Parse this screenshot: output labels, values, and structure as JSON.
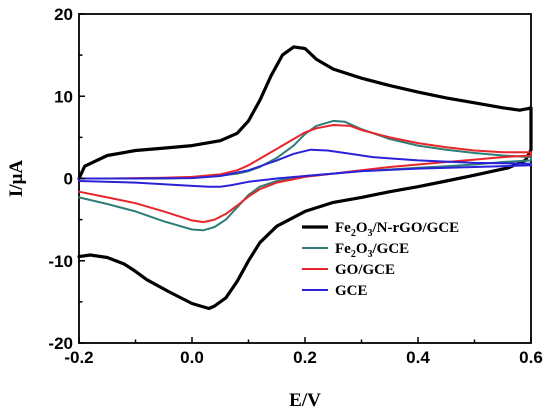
{
  "chart_data": {
    "type": "line",
    "title": "",
    "xlabel": "E/V",
    "ylabel": "I/μA",
    "xlim": [
      -0.2,
      0.6
    ],
    "ylim": [
      -20,
      20
    ],
    "x_ticks": [
      "-0.2",
      "0.0",
      "0.2",
      "0.4",
      "0.6"
    ],
    "y_ticks": [
      "20",
      "10",
      "0",
      "-10",
      "-20"
    ],
    "grid": false,
    "legend_position": "lower-right",
    "series": [
      {
        "name": "Fe2O3/N-rGO/GCE",
        "name_parts": [
          "Fe",
          "2",
          "O",
          "3",
          "/N-rGO/GCE"
        ],
        "color": "#000000",
        "stroke_width": 3.2,
        "x": [
          -0.2,
          -0.19,
          -0.15,
          -0.1,
          -0.05,
          0.0,
          0.05,
          0.08,
          0.1,
          0.12,
          0.14,
          0.16,
          0.18,
          0.2,
          0.22,
          0.25,
          0.3,
          0.35,
          0.4,
          0.45,
          0.5,
          0.55,
          0.58,
          0.595,
          0.6,
          0.6,
          0.59,
          0.56,
          0.52,
          0.5,
          0.45,
          0.4,
          0.35,
          0.3,
          0.25,
          0.2,
          0.15,
          0.12,
          0.1,
          0.08,
          0.06,
          0.04,
          0.03,
          0.0,
          -0.04,
          -0.08,
          -0.1,
          -0.12,
          -0.15,
          -0.18,
          -0.2
        ],
        "y": [
          0.0,
          1.5,
          2.8,
          3.4,
          3.7,
          4.0,
          4.6,
          5.5,
          7.0,
          9.5,
          12.5,
          15.0,
          16.0,
          15.8,
          14.5,
          13.3,
          12.2,
          11.3,
          10.5,
          9.8,
          9.2,
          8.6,
          8.3,
          8.5,
          8.6,
          3.5,
          2.2,
          1.3,
          0.7,
          0.4,
          -0.3,
          -1.0,
          -1.6,
          -2.3,
          -2.9,
          -4.0,
          -5.8,
          -7.8,
          -10.0,
          -12.5,
          -14.5,
          -15.5,
          -15.8,
          -15.2,
          -13.8,
          -12.3,
          -11.3,
          -10.4,
          -9.6,
          -9.3,
          -9.5
        ]
      },
      {
        "name": "Fe2O3/GCE",
        "name_parts": [
          "Fe",
          "2",
          "O",
          "3",
          "/GCE"
        ],
        "color": "#2e7d78",
        "stroke_width": 2,
        "x": [
          -0.2,
          -0.15,
          -0.1,
          -0.05,
          0.0,
          0.02,
          0.05,
          0.08,
          0.1,
          0.12,
          0.15,
          0.18,
          0.2,
          0.22,
          0.25,
          0.27,
          0.3,
          0.35,
          0.4,
          0.45,
          0.5,
          0.55,
          0.6,
          0.6,
          0.55,
          0.5,
          0.45,
          0.4,
          0.35,
          0.3,
          0.25,
          0.2,
          0.15,
          0.12,
          0.1,
          0.08,
          0.06,
          0.04,
          0.02,
          0.0,
          -0.05,
          -0.1,
          -0.15,
          -0.2
        ],
        "y": [
          0.0,
          0.0,
          0.0,
          0.0,
          0.1,
          0.2,
          0.35,
          0.6,
          0.9,
          1.4,
          2.5,
          4.0,
          5.4,
          6.4,
          7.0,
          6.9,
          6.0,
          4.8,
          4.0,
          3.5,
          3.1,
          2.8,
          2.6,
          2.2,
          2.0,
          1.7,
          1.5,
          1.3,
          1.1,
          0.9,
          0.6,
          0.3,
          -0.3,
          -1.0,
          -2.0,
          -3.5,
          -5.0,
          -5.9,
          -6.3,
          -6.2,
          -5.2,
          -4.0,
          -3.1,
          -2.3
        ]
      },
      {
        "name": "GO/GCE",
        "name_parts": [
          "GO/GCE"
        ],
        "color": "#e8262a",
        "stroke_width": 2,
        "x": [
          -0.2,
          -0.15,
          -0.1,
          -0.05,
          0.0,
          0.05,
          0.08,
          0.1,
          0.12,
          0.15,
          0.18,
          0.2,
          0.22,
          0.25,
          0.28,
          0.3,
          0.35,
          0.4,
          0.45,
          0.5,
          0.55,
          0.6,
          0.6,
          0.55,
          0.5,
          0.45,
          0.4,
          0.35,
          0.3,
          0.25,
          0.2,
          0.15,
          0.12,
          0.1,
          0.08,
          0.06,
          0.04,
          0.02,
          0.0,
          -0.05,
          -0.1,
          -0.15,
          -0.2
        ],
        "y": [
          0.0,
          0.0,
          0.05,
          0.1,
          0.2,
          0.5,
          1.0,
          1.6,
          2.4,
          3.6,
          4.8,
          5.6,
          6.1,
          6.5,
          6.4,
          5.9,
          5.0,
          4.3,
          3.8,
          3.4,
          3.2,
          3.2,
          2.8,
          2.6,
          2.3,
          2.0,
          1.7,
          1.4,
          1.0,
          0.6,
          0.2,
          -0.5,
          -1.3,
          -2.2,
          -3.3,
          -4.3,
          -5.0,
          -5.3,
          -5.1,
          -4.0,
          -3.0,
          -2.3,
          -1.6
        ]
      },
      {
        "name": "GCE",
        "name_parts": [
          "GCE"
        ],
        "color": "#2a22d8",
        "stroke_width": 2,
        "x": [
          -0.2,
          -0.1,
          0.0,
          0.05,
          0.1,
          0.15,
          0.18,
          0.21,
          0.24,
          0.28,
          0.32,
          0.4,
          0.5,
          0.6,
          0.6,
          0.5,
          0.4,
          0.3,
          0.25,
          0.2,
          0.15,
          0.1,
          0.07,
          0.05,
          0.03,
          0.0,
          -0.05,
          -0.1,
          -0.2
        ],
        "y": [
          0.0,
          0.0,
          0.05,
          0.3,
          1.0,
          2.2,
          3.0,
          3.5,
          3.4,
          3.0,
          2.6,
          2.2,
          1.9,
          1.8,
          1.6,
          1.4,
          1.2,
          0.9,
          0.6,
          0.3,
          0.0,
          -0.4,
          -0.8,
          -1.0,
          -1.0,
          -0.9,
          -0.7,
          -0.5,
          -0.3
        ]
      }
    ]
  }
}
